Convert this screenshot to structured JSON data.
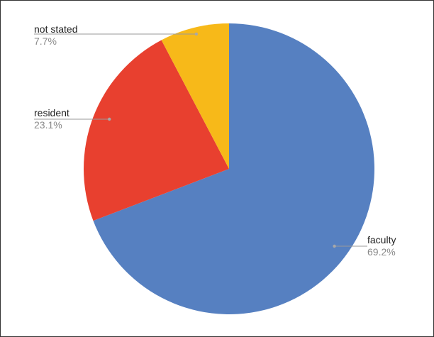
{
  "chart_data": {
    "type": "pie",
    "title": "",
    "start_angle_deg": 0,
    "direction": "clockwise",
    "slices": [
      {
        "label": "faculty",
        "value": 69.2,
        "value_label": "69.2%",
        "color": "#5680C1"
      },
      {
        "label": "resident",
        "value": 23.1,
        "value_label": "23.1%",
        "color": "#E8402F"
      },
      {
        "label": "not stated",
        "value": 7.7,
        "value_label": "7.7%",
        "color": "#F7B919"
      }
    ],
    "legend": "none",
    "label_style": "outside labels with leader lines"
  }
}
